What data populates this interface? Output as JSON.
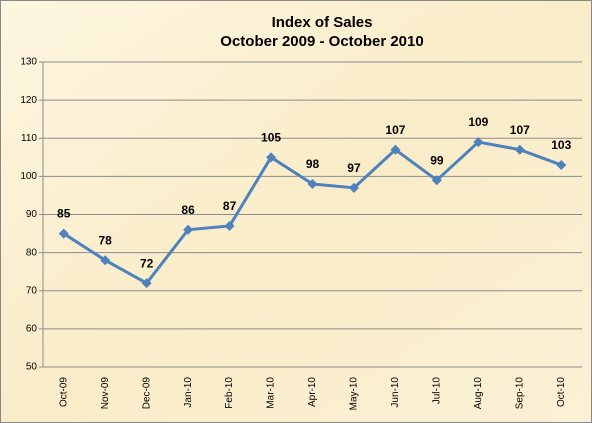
{
  "chart_data": {
    "type": "line",
    "title": "Index of Sales",
    "subtitle": "October 2009 - October 2010",
    "categories": [
      "Oct-09",
      "Nov-09",
      "Dec-09",
      "Jan-10",
      "Feb-10",
      "Mar-10",
      "Apr-10",
      "May-10",
      "Jun-10",
      "Jul-10",
      "Aug-10",
      "Sep-10",
      "Oct-10"
    ],
    "values": [
      85,
      78,
      72,
      86,
      87,
      105,
      98,
      97,
      107,
      99,
      109,
      107,
      103
    ],
    "color": "#4f81bd",
    "ylim": [
      50,
      130
    ],
    "yticks": [
      50,
      60,
      70,
      80,
      90,
      100,
      110,
      120,
      130
    ],
    "grid": true
  }
}
